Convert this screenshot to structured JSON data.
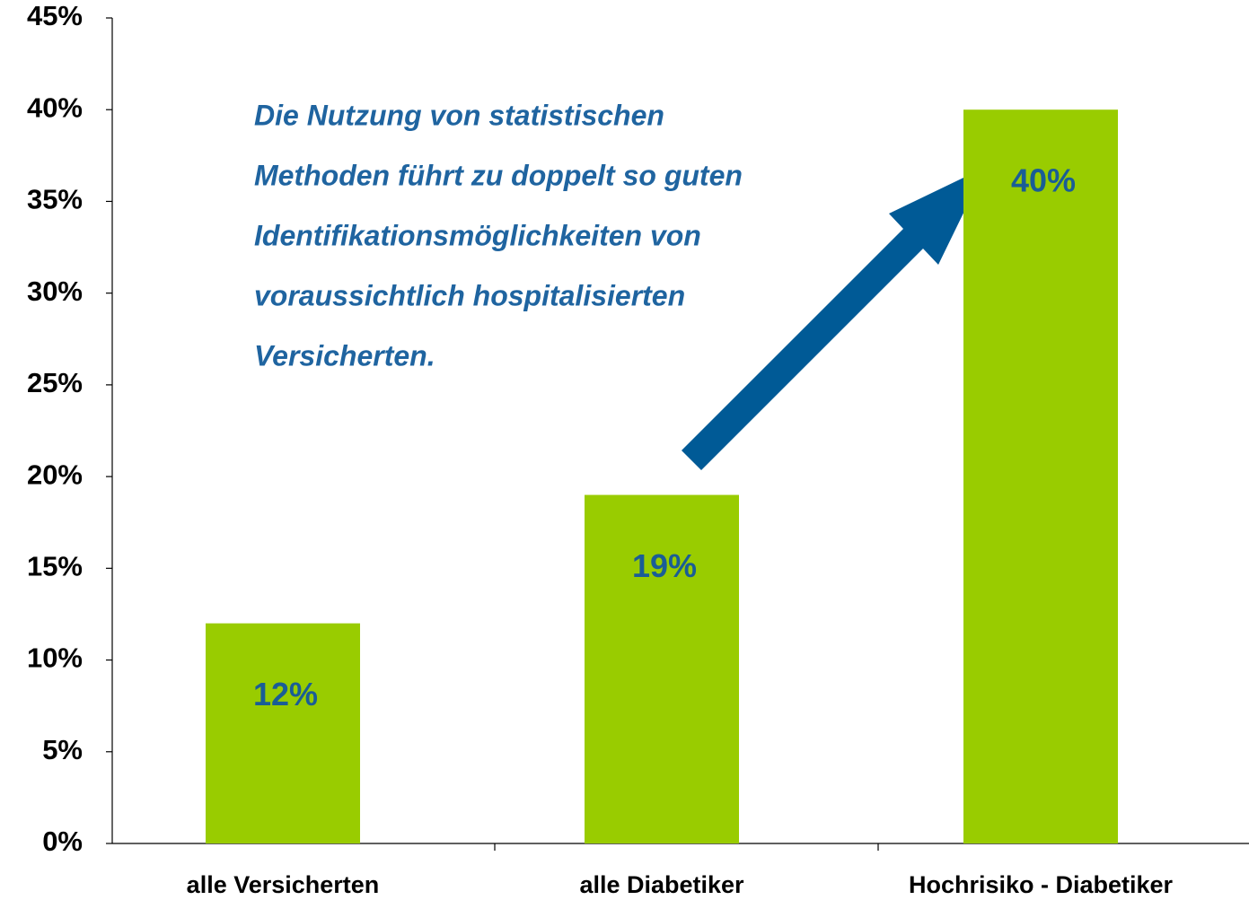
{
  "chart_data": {
    "type": "bar",
    "categories": [
      "alle Versicherten",
      "alle Diabetiker",
      "Hochrisiko - Diabetiker"
    ],
    "values": [
      12,
      19,
      40
    ],
    "value_labels": [
      "12%",
      "19%",
      "40%"
    ],
    "color": "#99cc00",
    "ylim": [
      0,
      45
    ],
    "yticks": [
      {
        "value": 0,
        "label": "0%"
      },
      {
        "value": 5,
        "label": "5%"
      },
      {
        "value": 10,
        "label": "10%"
      },
      {
        "value": 15,
        "label": "15%"
      },
      {
        "value": 20,
        "label": "20%"
      },
      {
        "value": 25,
        "label": "25%"
      },
      {
        "value": 30,
        "label": "30%"
      },
      {
        "value": 35,
        "label": "35%"
      },
      {
        "value": 40,
        "label": "40%"
      },
      {
        "value": 45,
        "label": "45%"
      }
    ],
    "grid": false,
    "annotation": [
      "Die Nutzung von statistischen",
      "Methoden führt zu doppelt so guten",
      "Identifikationsmöglichkeiten von",
      "voraussichtlich hospitalisierten",
      "Versicherten."
    ]
  }
}
